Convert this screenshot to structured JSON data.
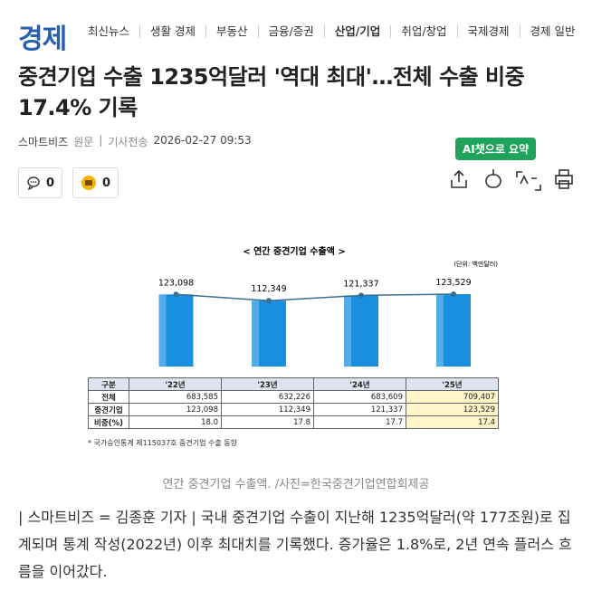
{
  "header": {
    "logo": "경제",
    "nav": [
      "최신뉴스",
      "생활 경제",
      "부동산",
      "금융/증권",
      "산업/기업",
      "취업/창업",
      "국제경제",
      "경제 일반"
    ],
    "active": 4
  },
  "article": {
    "headline": "중견기업 수출 1235억달러 '역대 최대'…전체 수출 비중 17.4% 기록",
    "source": "스마트비즈",
    "original": "원문",
    "sent_label": "기사전송",
    "datetime": "2026-02-27 09:53",
    "comment_count": 0,
    "reaction_count": 0,
    "ai_summary": "AI챗으로 요약",
    "caption": "연간 중견기업 수출액. /사진=한국중견기업연합회제공",
    "body": "| 스마트비즈 = 김종훈 기자 | 국내 중견기업 수출이 지난해 1235억달러(약 177조원)로 집계되며 통계 작성(2022년) 이후 최대치를 기록했다. 증가율은 1.8%로, 2년 연속 플러스 흐름을 이어갔다."
  },
  "chart_data": {
    "type": "bar",
    "title": "< 연간 중견기업 수출액 >",
    "unit": "(단위: 백만달러)",
    "categories": [
      "'22년",
      "'23년",
      "'24년",
      "'25년"
    ],
    "values": [
      123098,
      112349,
      121337,
      123529
    ],
    "value_labels": [
      "123,098",
      "112,349",
      "121,337",
      "123,529"
    ],
    "color": "#1a8fe0",
    "line_color": "#3b6e8f",
    "table": {
      "corner": "구분",
      "rows": [
        [
          "전체",
          "683,585",
          "632,226",
          "683,609",
          "709,407"
        ],
        [
          "중견기업",
          "123,098",
          "112,349",
          "121,337",
          "123,529"
        ],
        [
          "비중(%)",
          "18.0",
          "17.8",
          "17.7",
          "17.4"
        ]
      ]
    },
    "note": "* 국가승인통계 제115037호 중견기업 수출 동향"
  }
}
